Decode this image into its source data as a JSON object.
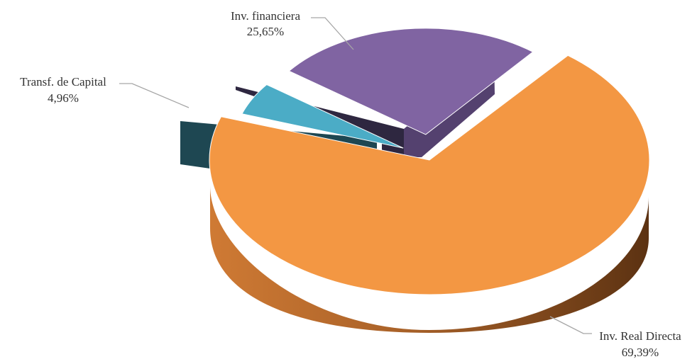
{
  "chart_data": {
    "type": "pie",
    "style": "3d-exploded",
    "slices": [
      {
        "label": "Inv. Real Directa",
        "value": 69.39,
        "value_text": "69,39%",
        "color": "#f39743",
        "side_color": "#6b3a15"
      },
      {
        "label": "Transf. de Capital",
        "value": 4.96,
        "value_text": "4,96%",
        "color": "#4bacc6",
        "side_color": "#1f4853"
      },
      {
        "label": "Inv. financiera",
        "value": 25.65,
        "value_text": "25,65%",
        "color": "#8064a2",
        "side_color": "#563f70"
      }
    ],
    "legend": "none",
    "data_labels": "outside-with-leader-lines"
  }
}
